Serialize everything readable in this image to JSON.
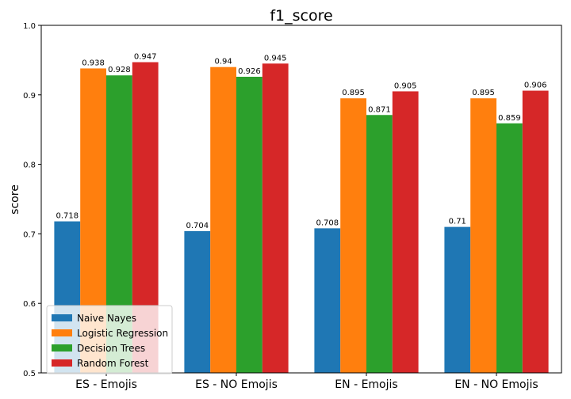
{
  "chart_data": {
    "type": "bar",
    "title": "f1_score",
    "xlabel": "",
    "ylabel": "score",
    "ylim": [
      0.5,
      1.0
    ],
    "yticks": [
      "0.5",
      "0.6",
      "0.7",
      "0.8",
      "0.9",
      "1.0"
    ],
    "grid": false,
    "legend_position": "lower-left",
    "categories": [
      "ES - Emojis",
      "ES - NO Emojis",
      "EN - Emojis",
      "EN - NO Emojis"
    ],
    "series": [
      {
        "name": "Naive Nayes",
        "color": "#1f77b4",
        "values": [
          0.718,
          0.704,
          0.708,
          0.71
        ]
      },
      {
        "name": "Logistic Regression",
        "color": "#ff7f0e",
        "values": [
          0.938,
          0.94,
          0.895,
          0.895
        ]
      },
      {
        "name": "Decision Trees",
        "color": "#2ca02c",
        "values": [
          0.928,
          0.926,
          0.871,
          0.859
        ]
      },
      {
        "name": "Random Forest",
        "color": "#d62728",
        "values": [
          0.947,
          0.945,
          0.905,
          0.906
        ]
      }
    ]
  }
}
